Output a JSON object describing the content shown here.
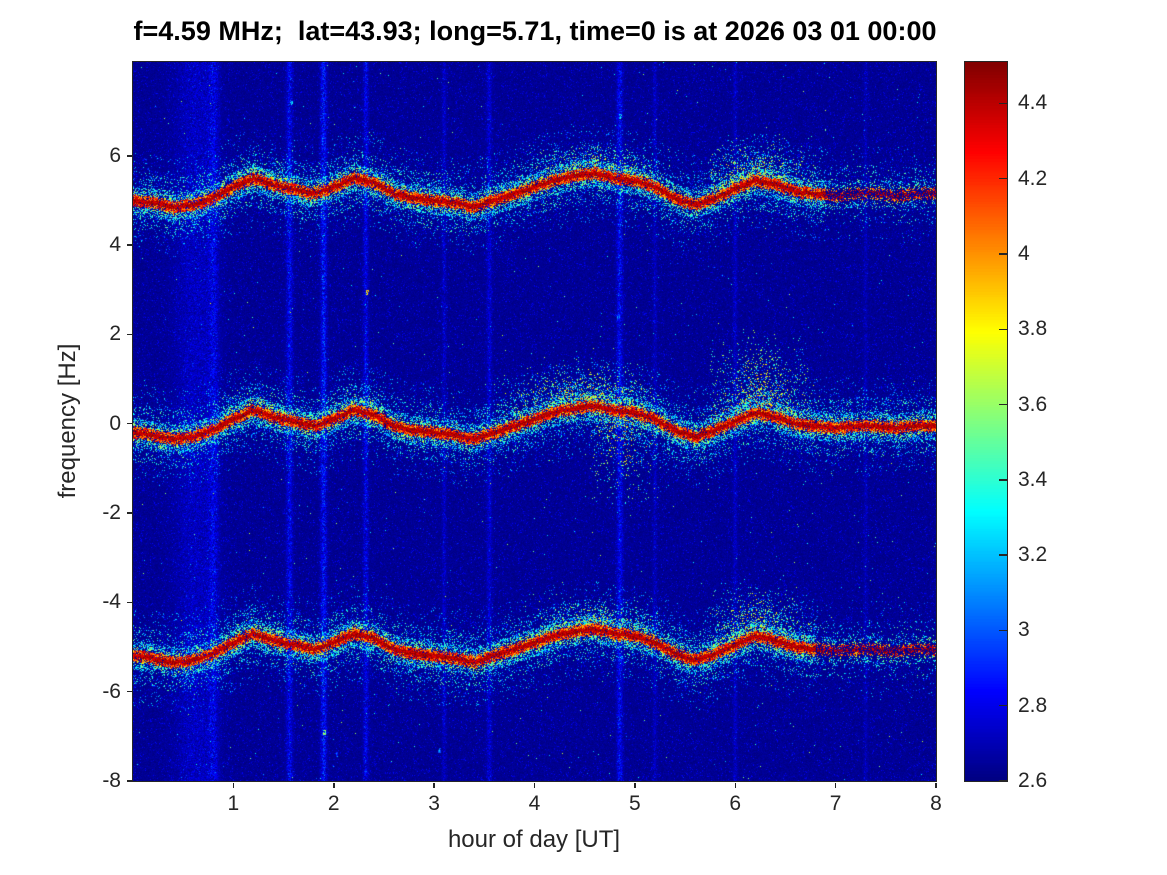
{
  "chart_data": {
    "type": "heatmap",
    "title": "f=4.59 MHz;  lat=43.93; long=5.71, time=0 is at 2026 03 01 00:00",
    "xlabel": "hour of day [UT]",
    "ylabel": "frequency [Hz]",
    "xlim": [
      0,
      8
    ],
    "ylim": [
      -8,
      8.1
    ],
    "x_ticks": [
      1,
      2,
      3,
      4,
      5,
      6,
      7,
      8
    ],
    "y_ticks": [
      -8,
      -6,
      -4,
      -2,
      0,
      2,
      4,
      6
    ],
    "grid": false,
    "colormap": "jet",
    "colorbar": {
      "min": 2.6,
      "max": 4.51,
      "ticks": [
        2.6,
        2.8,
        3,
        3.2,
        3.4,
        3.6,
        3.8,
        4,
        4.2,
        4.4
      ],
      "position": "right"
    },
    "background_level": 2.65,
    "x_samples": [
      0,
      0.2,
      0.4,
      0.6,
      0.8,
      1,
      1.2,
      1.4,
      1.6,
      1.8,
      2,
      2.2,
      2.4,
      2.6,
      2.8,
      3,
      3.2,
      3.4,
      3.6,
      3.8,
      4,
      4.2,
      4.4,
      4.6,
      4.8,
      5,
      5.2,
      5.4,
      5.6,
      5.8,
      6,
      6.2,
      6.4,
      6.6,
      6.8,
      7,
      7.2,
      7.4,
      7.6,
      7.8,
      8
    ],
    "series": [
      {
        "name": "upper-doppler-trace",
        "base_frequency": 5.15,
        "sparse_from": 6.9,
        "y": [
          5.0,
          4.95,
          4.85,
          4.9,
          5.05,
          5.3,
          5.5,
          5.35,
          5.25,
          5.15,
          5.3,
          5.5,
          5.4,
          5.15,
          5.05,
          5.0,
          4.95,
          4.85,
          5.0,
          5.15,
          5.3,
          5.45,
          5.55,
          5.6,
          5.5,
          5.45,
          5.3,
          5.05,
          4.9,
          5.05,
          5.25,
          5.45,
          5.35,
          5.2,
          5.15,
          5.1,
          5.15,
          5.15,
          5.1,
          5.15,
          5.15
        ]
      },
      {
        "name": "carrier-trace",
        "base_frequency": -0.05,
        "sparse_from": null,
        "y": [
          -0.2,
          -0.25,
          -0.35,
          -0.3,
          -0.15,
          0.1,
          0.3,
          0.15,
          0.05,
          -0.05,
          0.1,
          0.3,
          0.2,
          -0.05,
          -0.15,
          -0.2,
          -0.25,
          -0.35,
          -0.2,
          -0.05,
          0.1,
          0.25,
          0.35,
          0.4,
          0.3,
          0.25,
          0.1,
          -0.15,
          -0.3,
          -0.15,
          0.05,
          0.25,
          0.15,
          0,
          -0.05,
          -0.1,
          -0.05,
          -0.05,
          -0.1,
          -0.05,
          -0.05
        ]
      },
      {
        "name": "lower-doppler-trace",
        "base_frequency": -5.05,
        "sparse_from": 6.8,
        "y": [
          -5.2,
          -5.25,
          -5.35,
          -5.3,
          -5.15,
          -4.9,
          -4.7,
          -4.85,
          -4.95,
          -5.05,
          -4.9,
          -4.7,
          -4.8,
          -5.05,
          -5.15,
          -5.2,
          -5.25,
          -5.35,
          -5.2,
          -5.05,
          -4.9,
          -4.75,
          -4.65,
          -4.6,
          -4.7,
          -4.75,
          -4.9,
          -5.15,
          -5.3,
          -5.15,
          -4.95,
          -4.75,
          -4.85,
          -5,
          -5.05,
          -5.1,
          -5.05,
          -5.05,
          -5.1,
          -5.05,
          -5.05
        ]
      }
    ],
    "plumes": [
      {
        "series": 0,
        "x0": 3.7,
        "x1": 5.4,
        "xpeak": 4.6,
        "y_to": 6.35,
        "density": 0.45
      },
      {
        "series": 0,
        "x0": 5.75,
        "x1": 6.95,
        "xpeak": 6.2,
        "y_to": 6.6,
        "density": 0.5
      },
      {
        "series": 0,
        "x0": 0.85,
        "x1": 1.65,
        "xpeak": 1.2,
        "y_to": 5.95,
        "density": 0.3
      },
      {
        "series": 0,
        "x0": 1.95,
        "x1": 2.5,
        "xpeak": 2.2,
        "y_to": 5.9,
        "density": 0.3
      },
      {
        "series": 1,
        "x0": 3.5,
        "x1": 5.2,
        "xpeak": 4.5,
        "y_to": 1.55,
        "density": 0.5
      },
      {
        "series": 1,
        "x0": 5.75,
        "x1": 6.9,
        "xpeak": 6.25,
        "y_to": 2.3,
        "density": 0.5
      },
      {
        "series": 1,
        "x0": 0.85,
        "x1": 1.65,
        "xpeak": 1.2,
        "y_to": 0.85,
        "density": 0.35
      },
      {
        "series": 1,
        "x0": 1.95,
        "x1": 2.55,
        "xpeak": 2.25,
        "y_to": 0.85,
        "density": 0.35
      },
      {
        "series": 1,
        "x0": 4.55,
        "x1": 5.35,
        "xpeak": 4.85,
        "y_to": -2.35,
        "density": 0.25
      },
      {
        "series": 2,
        "x0": 3.8,
        "x1": 5.3,
        "xpeak": 4.6,
        "y_to": -3.75,
        "density": 0.4
      },
      {
        "series": 2,
        "x0": 5.75,
        "x1": 6.9,
        "xpeak": 6.2,
        "y_to": -3.35,
        "density": 0.45
      },
      {
        "series": 2,
        "x0": 0.85,
        "x1": 1.6,
        "xpeak": 1.2,
        "y_to": -4.25,
        "density": 0.3
      },
      {
        "series": 2,
        "x0": 2.0,
        "x1": 2.5,
        "xpeak": 2.25,
        "y_to": -4.35,
        "density": 0.3
      }
    ],
    "stripes": [
      {
        "x": 0.62,
        "width": 0.2,
        "boost": 0.16
      },
      {
        "x": 0.8,
        "width": 0.05,
        "boost": 0.22
      },
      {
        "x": 1.56,
        "width": 0.03,
        "boost": 0.32
      },
      {
        "x": 1.9,
        "width": 0.03,
        "boost": 0.4
      },
      {
        "x": 2.32,
        "width": 0.025,
        "boost": 0.28
      },
      {
        "x": 3.1,
        "width": 0.02,
        "boost": 0.18
      },
      {
        "x": 3.55,
        "width": 0.025,
        "boost": 0.22
      },
      {
        "x": 4.85,
        "width": 0.03,
        "boost": 0.32
      },
      {
        "x": 5.2,
        "width": 0.02,
        "boost": 0.15
      },
      {
        "x": 6.0,
        "width": 0.02,
        "boost": 0.16
      },
      {
        "x": 7.3,
        "width": 0.02,
        "boost": 0.12
      }
    ],
    "specks": [
      {
        "x": 1.57,
        "y": 7.2,
        "value": 3.4
      },
      {
        "x": 1.9,
        "y": -6.9,
        "value": 3.7
      },
      {
        "x": 2.33,
        "y": 2.95,
        "value": 4.0
      },
      {
        "x": 4.85,
        "y": 6.9,
        "value": 3.4
      },
      {
        "x": 4.83,
        "y": 2.4,
        "value": 3.2
      },
      {
        "x": 3.05,
        "y": -7.3,
        "value": 3.3
      },
      {
        "x": 2.02,
        "y": -7.4,
        "value": 3.2
      },
      {
        "x": 0.95,
        "y": 6.8,
        "value": 3.0
      }
    ],
    "colors": {
      "background": "#ffffff",
      "axis": "#262626",
      "title": "#000000",
      "noise_floor_blue": "#00008f"
    }
  }
}
